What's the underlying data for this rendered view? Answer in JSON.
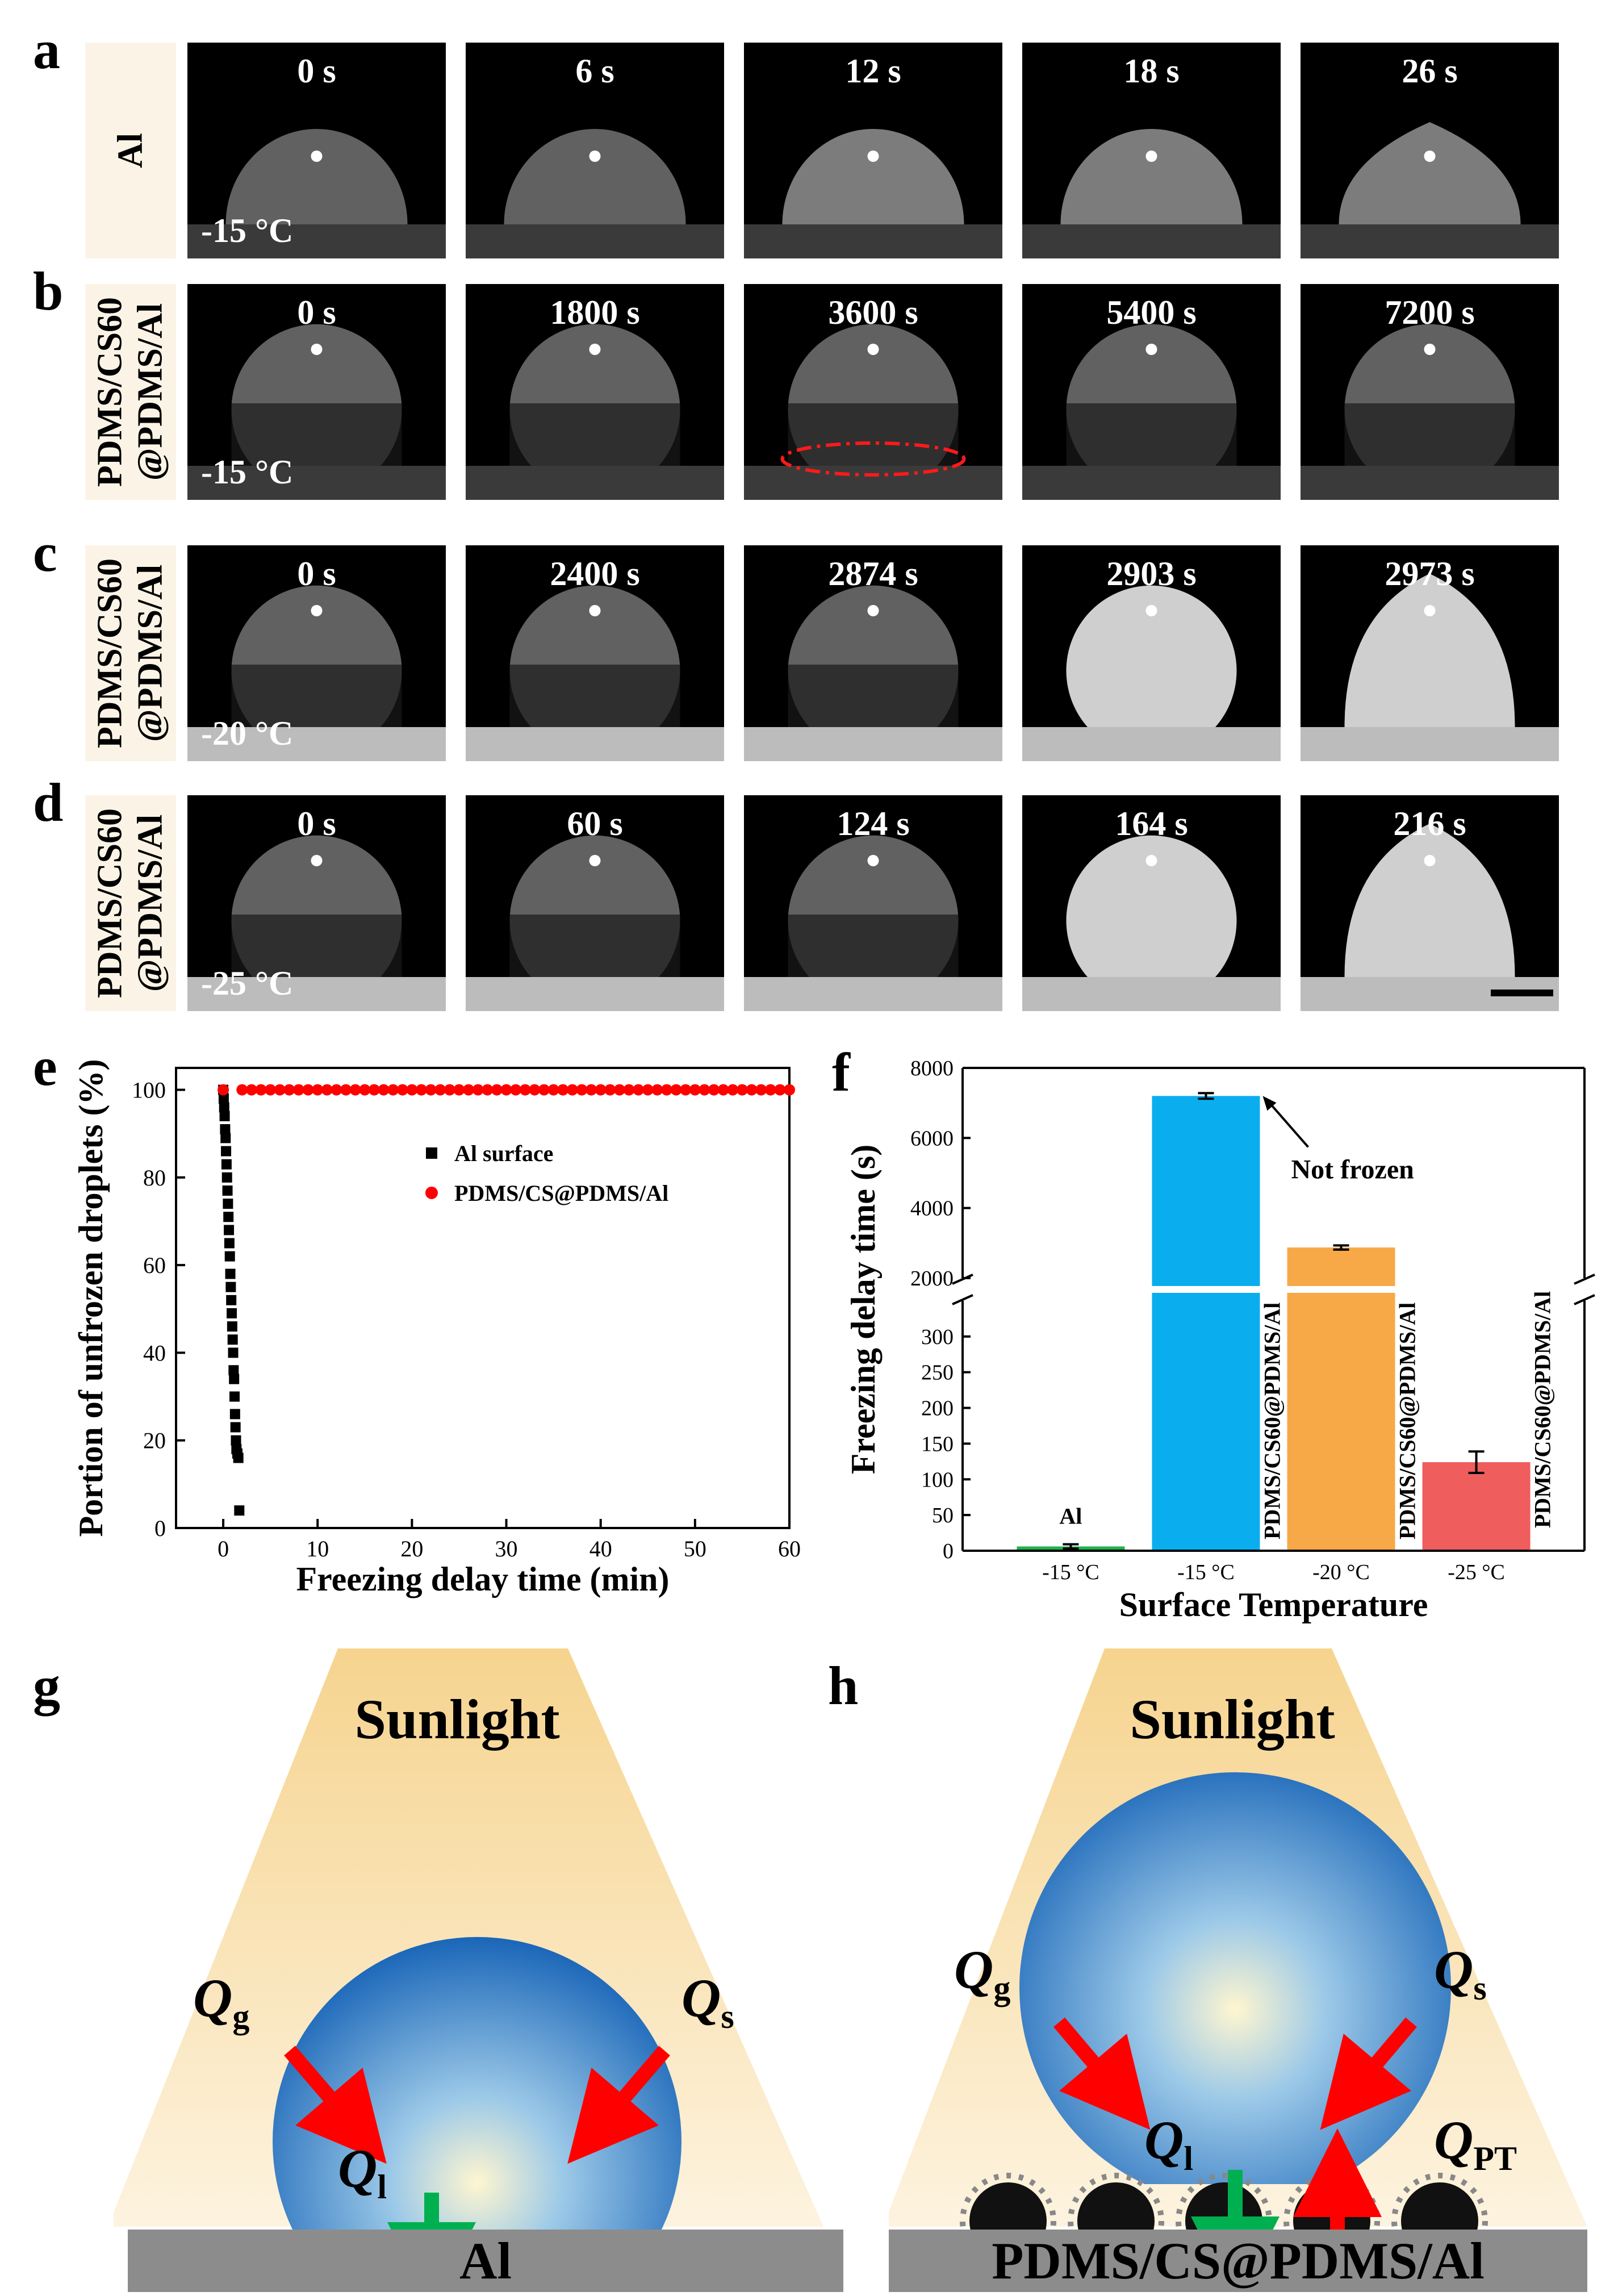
{
  "panels": {
    "a": "a",
    "b": "b",
    "c": "c",
    "d": "d",
    "e": "e",
    "f": "f",
    "g": "g",
    "h": "h"
  },
  "rows": [
    {
      "label": "Al",
      "temp": "-15 °C",
      "times": [
        "0 s",
        "6 s",
        "12 s",
        "18 s",
        "26 s"
      ]
    },
    {
      "label": "PDMS/CS60 @PDMS/Al",
      "label1": "PDMS/CS60",
      "label2": "@PDMS/Al",
      "temp": "-15 °C",
      "times": [
        "0 s",
        "1800 s",
        "3600 s",
        "5400 s",
        "7200 s"
      ]
    },
    {
      "label": "PDMS/CS60 @PDMS/Al",
      "label1": "PDMS/CS60",
      "label2": "@PDMS/Al",
      "temp": "-20 °C",
      "times": [
        "0 s",
        "2400 s",
        "2874 s",
        "2903 s",
        "2973 s"
      ]
    },
    {
      "label": "PDMS/CS60 @PDMS/Al",
      "label1": "PDMS/CS60",
      "label2": "@PDMS/Al",
      "temp": "-25 °C",
      "times": [
        "0 s",
        "60 s",
        "124 s",
        "164 s",
        "216 s"
      ]
    }
  ],
  "chart_data": [
    {
      "id": "e",
      "type": "scatter",
      "xlabel": "Freezing delay time (min)",
      "ylabel": "Portion of unfrozen droplets (%)",
      "xlim": [
        -5,
        60
      ],
      "ylim": [
        0,
        105
      ],
      "xticks": [
        "0",
        "10",
        "20",
        "30",
        "40",
        "50",
        "60"
      ],
      "yticks": [
        "0",
        "20",
        "40",
        "60",
        "80",
        "100"
      ],
      "series": [
        {
          "name": "Al surface",
          "color": "#000000",
          "marker": "square",
          "x": [
            0.0,
            0.05,
            0.1,
            0.15,
            0.2,
            0.25,
            0.3,
            0.35,
            0.4,
            0.45,
            0.5,
            0.55,
            0.6,
            0.65,
            0.7,
            0.75,
            0.8,
            0.85,
            0.9,
            0.95,
            1.0,
            1.05,
            1.1,
            1.15,
            1.2,
            1.25,
            1.3,
            1.35,
            1.4,
            1.5,
            1.6,
            1.7
          ],
          "y": [
            100,
            98,
            96,
            94,
            91,
            89,
            86,
            83,
            80,
            77,
            74,
            71,
            68,
            65,
            62,
            58,
            55,
            52,
            49,
            46,
            43,
            40,
            36,
            34,
            30,
            26,
            23,
            20,
            18,
            17,
            16,
            4
          ]
        },
        {
          "name": "PDMS/CS@PDMS/Al",
          "color": "#ff0000",
          "marker": "circle",
          "x": [
            0,
            2,
            3,
            4,
            5,
            6,
            7,
            8,
            9,
            10,
            11,
            12,
            13,
            14,
            15,
            16,
            17,
            18,
            19,
            20,
            21,
            22,
            23,
            24,
            25,
            26,
            27,
            28,
            29,
            30,
            31,
            32,
            33,
            34,
            35,
            36,
            37,
            38,
            39,
            40,
            41,
            42,
            43,
            44,
            45,
            46,
            47,
            48,
            49,
            50,
            51,
            52,
            53,
            54,
            55,
            56,
            57,
            58,
            59,
            60
          ],
          "y": [
            100,
            100,
            100,
            100,
            100,
            100,
            100,
            100,
            100,
            100,
            100,
            100,
            100,
            100,
            100,
            100,
            100,
            100,
            100,
            100,
            100,
            100,
            100,
            100,
            100,
            100,
            100,
            100,
            100,
            100,
            100,
            100,
            100,
            100,
            100,
            100,
            100,
            100,
            100,
            100,
            100,
            100,
            100,
            100,
            100,
            100,
            100,
            100,
            100,
            100,
            100,
            100,
            100,
            100,
            100,
            100,
            100,
            100,
            100,
            100
          ]
        }
      ]
    },
    {
      "id": "f",
      "type": "bar",
      "xlabel": "Surface Temperature",
      "ylabel": "Freezing delay time (s)",
      "categories": [
        "-15 °C",
        "-15 °C",
        "-20 °C",
        "-25 °C"
      ],
      "values": [
        6,
        7200,
        2873,
        124
      ],
      "errors": [
        3,
        80,
        60,
        15
      ],
      "colors": [
        "#21b14c",
        "#0aaeef",
        "#f7a847",
        "#ef5d5d"
      ],
      "bar_labels": [
        "Al",
        "PDMS/CS60@PDMS/Al",
        "PDMS/CS60@PDMS/Al",
        "PDMS/CS60@PDMS/Al"
      ],
      "y_break": [
        350,
        2000
      ],
      "ylim_low": [
        0,
        350
      ],
      "ylim_high": [
        2000,
        8000
      ],
      "yticks_low": [
        "0",
        "50",
        "100",
        "150",
        "200",
        "250",
        "300"
      ],
      "yticks_high": [
        "2000",
        "4000",
        "6000",
        "8000"
      ],
      "annotation": "Not frozen"
    }
  ],
  "schematics": {
    "g": {
      "sunlight": "Sunlight",
      "qg": "Q",
      "qg_sub": "g",
      "qs": "Q",
      "qs_sub": "s",
      "ql": "Q",
      "ql_sub": "l",
      "substrate": "Al"
    },
    "h": {
      "sunlight": "Sunlight",
      "qg": "Q",
      "qg_sub": "g",
      "qs": "Q",
      "qs_sub": "s",
      "ql": "Q",
      "ql_sub": "l",
      "qpt": "Q",
      "qpt_sub": "PT",
      "substrate": "PDMS/CS@PDMS/Al"
    }
  },
  "colors": {
    "accent_red": "#ff0000",
    "accent_green": "#00b050",
    "droplet": "#2a7fd0",
    "sunbeam": "#f7d99a"
  }
}
